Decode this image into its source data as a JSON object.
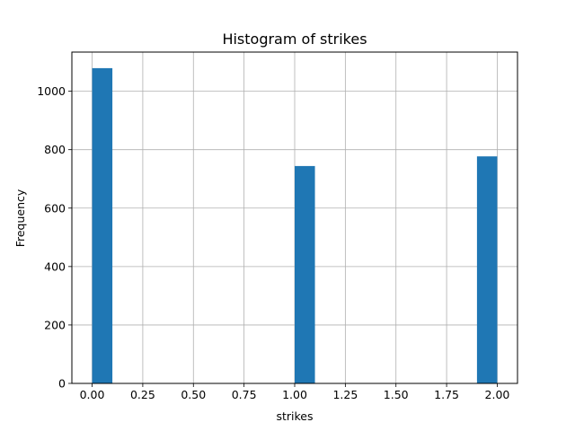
{
  "chart_data": {
    "type": "bar",
    "title": "Histogram of strikes",
    "xlabel": "strikes",
    "ylabel": "Frequency",
    "xlim": [
      -0.1,
      2.1
    ],
    "ylim": [
      0,
      1134
    ],
    "xticks": [
      0.0,
      0.25,
      0.5,
      0.75,
      1.0,
      1.25,
      1.5,
      1.75,
      2.0
    ],
    "xtick_labels": [
      "0.00",
      "0.25",
      "0.50",
      "0.75",
      "1.00",
      "1.25",
      "1.50",
      "1.75",
      "2.00"
    ],
    "yticks": [
      0,
      200,
      400,
      600,
      800,
      1000
    ],
    "ytick_labels": [
      "0",
      "200",
      "400",
      "600",
      "800",
      "1000"
    ],
    "bins": [
      {
        "start": 0.0,
        "end": 0.1,
        "value": 1079
      },
      {
        "start": 1.0,
        "end": 1.1,
        "value": 744
      },
      {
        "start": 1.9,
        "end": 2.0,
        "value": 777
      }
    ],
    "grid": true,
    "bar_color": "#1f77b4"
  }
}
